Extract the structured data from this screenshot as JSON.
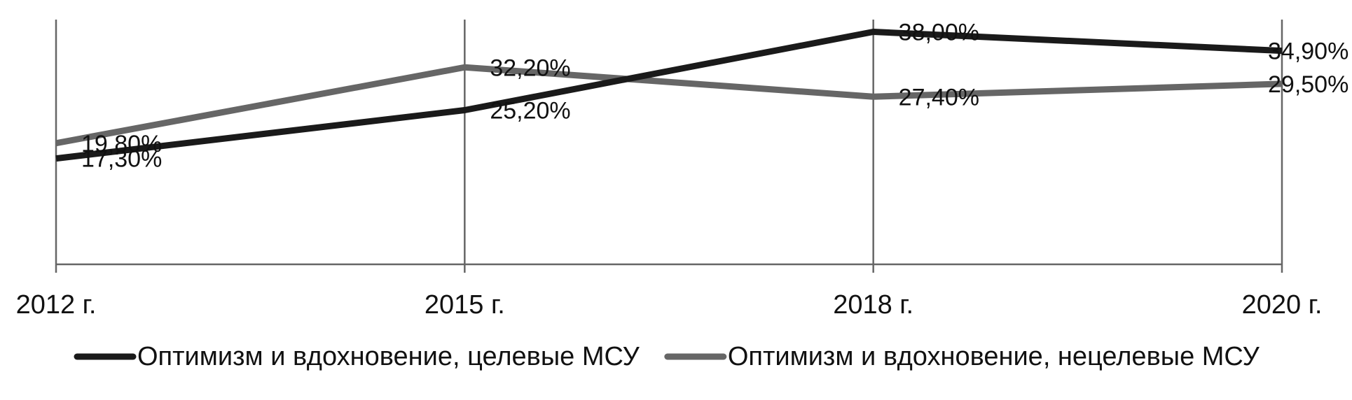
{
  "chart_data": {
    "type": "line",
    "categories": [
      "2012 г.",
      "2015 г.",
      "2018 г.",
      "2020 г."
    ],
    "ylim": [
      0,
      40
    ],
    "grid": "vertical",
    "legend_position": "bottom",
    "series": [
      {
        "name": "Оптимизм и вдохновение, целевые МСУ",
        "values": [
          17.3,
          25.2,
          38.0,
          34.9
        ],
        "labels": [
          "17,30%",
          "25,20%",
          "38,00%",
          "34,90%"
        ],
        "color": "#1a1a1a"
      },
      {
        "name": "Оптимизм и вдохновение, нецелевые МСУ",
        "values": [
          19.8,
          32.2,
          27.4,
          29.5
        ],
        "labels": [
          "19,80%",
          "32,20%",
          "27,40%",
          "29,50%"
        ],
        "color": "#666666"
      }
    ],
    "axis_color": "#666666"
  }
}
